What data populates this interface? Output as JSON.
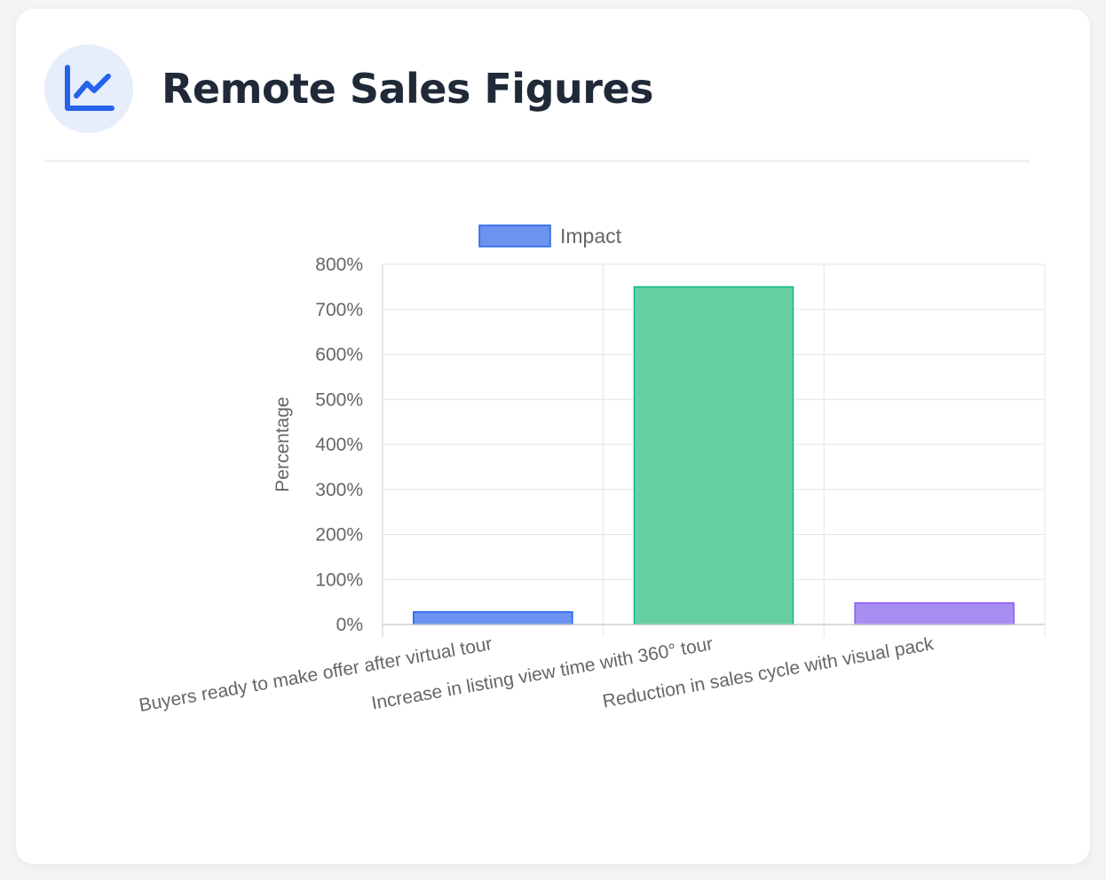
{
  "header": {
    "title": "Remote Sales Figures",
    "icon": "chart-line-icon",
    "accent": "#2563eb"
  },
  "chart_data": {
    "type": "bar",
    "categories": [
      "Buyers ready to make offer after virtual tour",
      "Increase in listing view time with 360° tour",
      "Reduction in sales cycle with visual pack"
    ],
    "series": [
      {
        "name": "Impact",
        "values": [
          28,
          750,
          48
        ],
        "colors": [
          "#6b93ef",
          "#66cfa4",
          "#a98ef2"
        ],
        "border_colors": [
          "#2563eb",
          "#10b981",
          "#8b5cf6"
        ]
      }
    ],
    "ylabel": "Percentage",
    "ylim": [
      0,
      800
    ],
    "ytick_step": 100,
    "ytick_suffix": "%",
    "grid": true,
    "legend": "top"
  }
}
